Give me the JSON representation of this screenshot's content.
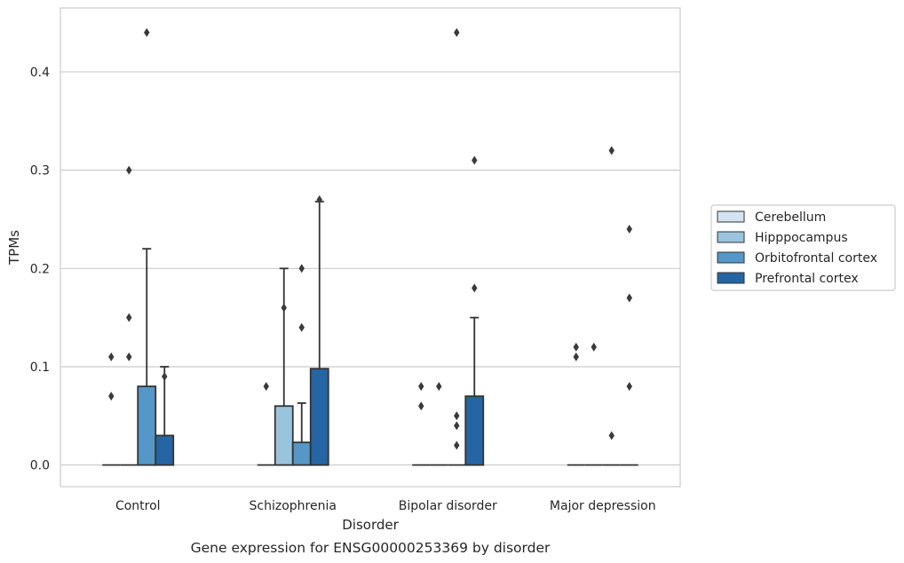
{
  "chart_data": {
    "type": "bar",
    "title": "",
    "caption": "Gene expression for ENSG00000253369 by disorder",
    "xlabel": "Disorder",
    "ylabel": "TPMs",
    "ylim": [
      -0.022,
      0.465
    ],
    "yticks": [
      "0.0",
      "0.1",
      "0.2",
      "0.3",
      "0.4"
    ],
    "grid": "horizontal",
    "legend_position": "right",
    "categories": [
      "Control",
      "Schizophrenia",
      "Bipolar disorder",
      "Major depression"
    ],
    "series": [
      {
        "name": "Cerebellum",
        "color": "#d4e3f2",
        "values": [
          0.0,
          0.0,
          0.0,
          0.0
        ],
        "errors": [
          0.0,
          0.0,
          0.0,
          0.0
        ],
        "outliers": [
          [
            0.07,
            0.11
          ],
          [
            0.08
          ],
          [
            0.06,
            0.08
          ],
          [
            0.11,
            0.12
          ]
        ]
      },
      {
        "name": "Hipppocampus",
        "color": "#9ac3dd",
        "values": [
          0.0,
          0.06,
          0.0,
          0.0
        ],
        "errors": [
          0.0,
          0.14,
          0.0,
          0.0
        ],
        "outliers": [
          [
            0.11,
            0.15,
            0.3
          ],
          [
            0.16
          ],
          [
            0.08
          ],
          [
            0.12
          ]
        ]
      },
      {
        "name": "Orbitofrontal cortex",
        "color": "#5597c6",
        "values": [
          0.08,
          0.023,
          0.0,
          0.0
        ],
        "errors": [
          0.14,
          0.04,
          0.0,
          0.0
        ],
        "outliers": [
          [
            0.44
          ],
          [
            0.14,
            0.2
          ],
          [
            0.02,
            0.04,
            0.05,
            0.44
          ],
          [
            0.03,
            0.32
          ]
        ]
      },
      {
        "name": "Prefrontal cortex",
        "color": "#2565a4",
        "values": [
          0.03,
          0.098,
          0.07,
          0.0
        ],
        "errors": [
          0.07,
          0.17,
          0.08,
          0.0
        ],
        "outliers": [
          [
            0.09
          ],
          [
            0.27
          ],
          [
            0.18,
            0.31
          ],
          [
            0.08,
            0.17,
            0.24
          ]
        ]
      }
    ]
  }
}
